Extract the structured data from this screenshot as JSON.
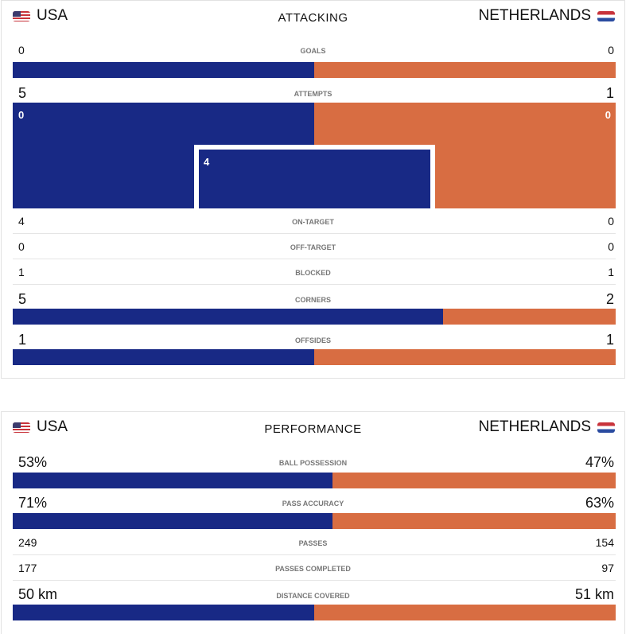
{
  "colors": {
    "home": "#182985",
    "away": "#d86d42"
  },
  "home_team": "USA",
  "away_team": "NETHERLANDS",
  "attacking": {
    "title": "ATTACKING",
    "goals": {
      "label": "GOALS",
      "home": "0",
      "away": "0",
      "home_share": 0.5
    },
    "attempts": {
      "label": "ATTEMPTS",
      "home": "5",
      "away": "1",
      "graphic": {
        "home_outside": "0",
        "away_outside": "0",
        "home_on_goal": "4"
      }
    },
    "on_target": {
      "label": "ON-TARGET",
      "home": "4",
      "away": "0"
    },
    "off_target": {
      "label": "OFF-TARGET",
      "home": "0",
      "away": "0"
    },
    "blocked": {
      "label": "BLOCKED",
      "home": "1",
      "away": "1"
    },
    "corners": {
      "label": "CORNERS",
      "home": "5",
      "away": "2",
      "home_share": 0.714
    },
    "offsides": {
      "label": "OFFSIDES",
      "home": "1",
      "away": "1",
      "home_share": 0.5
    }
  },
  "performance": {
    "title": "PERFORMANCE",
    "possession": {
      "label": "BALL POSSESSION",
      "home": "53%",
      "away": "47%",
      "home_share": 0.53
    },
    "pass_accuracy": {
      "label": "PASS ACCURACY",
      "home": "71%",
      "away": "63%",
      "home_share": 0.53
    },
    "passes": {
      "label": "PASSES",
      "home": "249",
      "away": "154"
    },
    "passes_completed": {
      "label": "PASSES COMPLETED",
      "home": "177",
      "away": "97"
    },
    "distance": {
      "label": "DISTANCE COVERED",
      "home": "50 km",
      "away": "51 km",
      "home_share": 0.5
    }
  }
}
